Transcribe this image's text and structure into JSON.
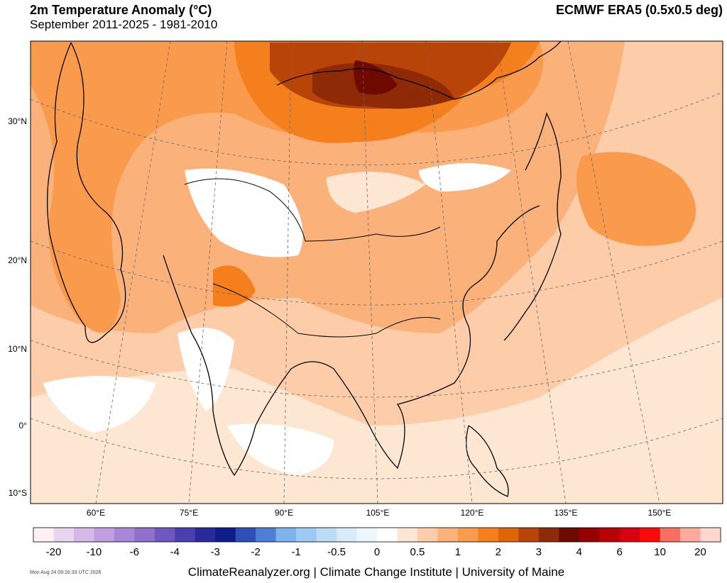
{
  "header": {
    "title": "2m Temperature Anomaly (°C)",
    "subtitle": "September 2011-2025 - 1981-2010",
    "source": "ECMWF ERA5 (0.5x0.5 deg)"
  },
  "map": {
    "lat_labels": [
      "30°N",
      "20°N",
      "10°N",
      "0°",
      "10°S"
    ],
    "lon_labels": [
      "60°E",
      "75°E",
      "90°E",
      "105°E",
      "120°E",
      "135°E",
      "150°E"
    ]
  },
  "colorbar": {
    "colors": [
      "#fff0f5",
      "#e8d6f0",
      "#d4b8e8",
      "#c09ee0",
      "#a987d8",
      "#8f70cc",
      "#6e58bf",
      "#4a3fae",
      "#2a2a9a",
      "#101c8a",
      "#2e4fb8",
      "#4f7fd4",
      "#7eb4ec",
      "#9ccaf2",
      "#bcdcf6",
      "#d8ebfa",
      "#eef6fd",
      "#ffffff",
      "#fde6d2",
      "#fccda8",
      "#fbb27a",
      "#f99a4c",
      "#f57f1c",
      "#de6406",
      "#b84408",
      "#8e2a06",
      "#6e0a00",
      "#960000",
      "#b80006",
      "#d8000e",
      "#fa0a0a",
      "#fb6f62",
      "#fdaa9c",
      "#fed8cf"
    ],
    "labels": [
      -20,
      -10,
      -6,
      -4,
      -3,
      -2,
      -1,
      -0.5,
      0,
      0.5,
      1,
      2,
      3,
      4,
      6,
      10,
      20
    ]
  },
  "footer": {
    "timestamp": "Mon Aug 24 09:16:33 UTC 2026",
    "credit": "ClimateReanalyzer.org | Climate Change Institute | University of Maine"
  }
}
